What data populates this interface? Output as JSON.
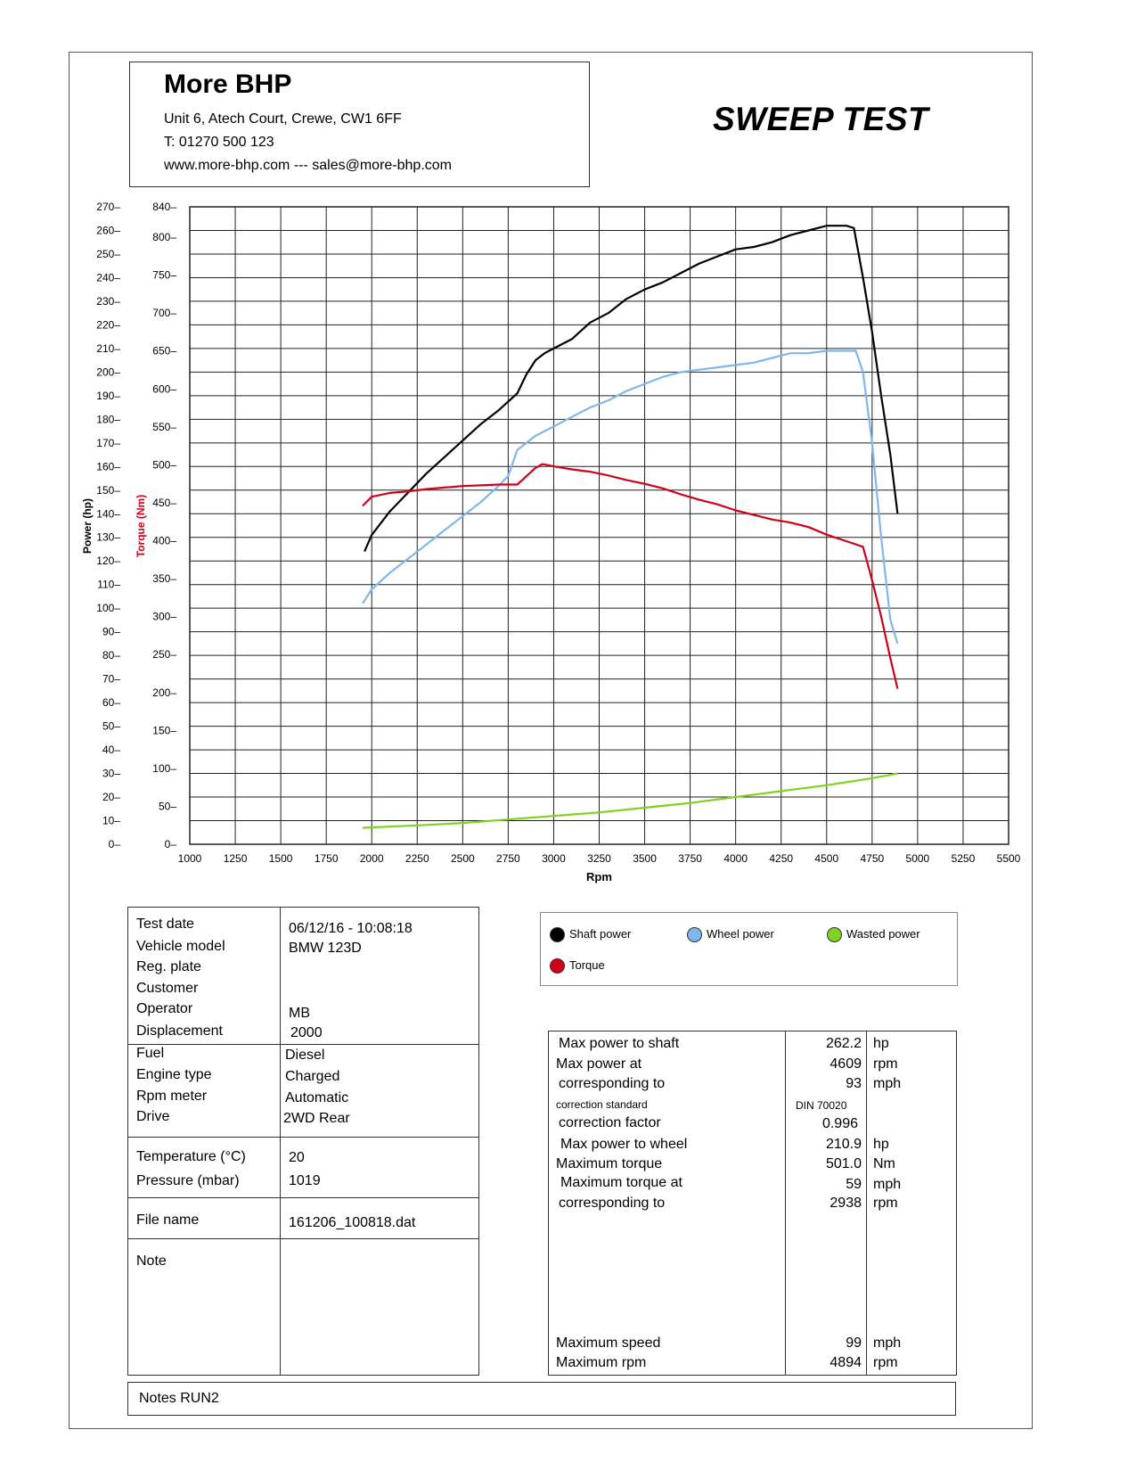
{
  "header": {
    "company": "More BHP",
    "address": "Unit 6, Atech Court, Crewe, CW1 6FF",
    "phone": "T: 01270 500 123",
    "web": "www.more-bhp.com --- sales@more-bhp.com",
    "title": "SWEEP TEST"
  },
  "chart_data": {
    "type": "line",
    "xlabel": "Rpm",
    "ylabel": "Power (hp)",
    "ylabel2": "Torque (Nm)",
    "xlim": [
      1000,
      5500
    ],
    "ylim": [
      0,
      270
    ],
    "ylim2": [
      0,
      840
    ],
    "x_ticks": [
      1000,
      1250,
      1500,
      1750,
      2000,
      2250,
      2500,
      2750,
      3000,
      3250,
      3500,
      3750,
      4000,
      4250,
      4500,
      4750,
      5000,
      5250,
      5500
    ],
    "y_ticks": [
      0,
      10,
      20,
      30,
      40,
      50,
      60,
      70,
      80,
      90,
      100,
      110,
      120,
      130,
      140,
      150,
      160,
      170,
      180,
      190,
      200,
      210,
      220,
      230,
      240,
      250,
      260,
      270
    ],
    "y2_ticks": [
      0,
      50,
      100,
      150,
      200,
      250,
      300,
      350,
      400,
      450,
      500,
      550,
      600,
      650,
      700,
      750,
      800,
      840
    ],
    "grid": true,
    "colors": {
      "shaft": "#000000",
      "wheel": "#7fb7ec",
      "wasted": "#7ed321",
      "torque": "#d0021b"
    },
    "series": [
      {
        "name": "Shaft power",
        "axis": "power",
        "color": "#000000",
        "x": [
          1960,
          2000,
          2100,
          2200,
          2300,
          2400,
          2500,
          2600,
          2700,
          2800,
          2850,
          2900,
          2950,
          3000,
          3100,
          3200,
          3300,
          3400,
          3500,
          3600,
          3700,
          3800,
          3900,
          4000,
          4100,
          4200,
          4300,
          4400,
          4500,
          4609,
          4650,
          4700,
          4750,
          4800,
          4850,
          4890
        ],
        "y": [
          124,
          131,
          141,
          149,
          157,
          164,
          171,
          178,
          184,
          191,
          199,
          205,
          208,
          210,
          214,
          221,
          225,
          231,
          235,
          238,
          242,
          246,
          249,
          252,
          253,
          255,
          258,
          260,
          262,
          262,
          261,
          240,
          217,
          190,
          165,
          140
        ]
      },
      {
        "name": "Wheel power",
        "axis": "power",
        "color": "#7fb7ec",
        "x": [
          1950,
          2000,
          2100,
          2200,
          2300,
          2400,
          2500,
          2600,
          2700,
          2750,
          2800,
          2900,
          3000,
          3100,
          3200,
          3300,
          3400,
          3500,
          3600,
          3700,
          3800,
          3900,
          4000,
          4100,
          4200,
          4300,
          4400,
          4500,
          4600,
          4660,
          4700,
          4750,
          4800,
          4850,
          4890
        ],
        "y": [
          102,
          108,
          115,
          121,
          127,
          133,
          139,
          145,
          152,
          156,
          167,
          173,
          177,
          181,
          185,
          188,
          192,
          195,
          198,
          200,
          201,
          202,
          203,
          204,
          206,
          208,
          208,
          209,
          209,
          209,
          200,
          170,
          130,
          95,
          85
        ]
      },
      {
        "name": "Wasted power",
        "axis": "power",
        "color": "#7ed321",
        "x": [
          1950,
          2250,
          2500,
          2750,
          3000,
          3250,
          3500,
          3750,
          4000,
          4250,
          4500,
          4750,
          4890
        ],
        "y": [
          7,
          8,
          9,
          10.5,
          12,
          13.5,
          15.5,
          17.5,
          20,
          22.5,
          25,
          28,
          30
        ]
      },
      {
        "name": "Torque",
        "axis": "torque",
        "color": "#d0021b",
        "x": [
          1950,
          2000,
          2100,
          2200,
          2300,
          2400,
          2500,
          2600,
          2700,
          2800,
          2850,
          2900,
          2938,
          3000,
          3100,
          3200,
          3300,
          3400,
          3500,
          3600,
          3700,
          3800,
          3900,
          4000,
          4100,
          4200,
          4300,
          4400,
          4500,
          4600,
          4700,
          4750,
          4800,
          4850,
          4890
        ],
        "y": [
          446,
          458,
          463,
          465,
          468,
          470,
          472,
          473,
          474,
          474,
          485,
          496,
          501,
          498,
          494,
          491,
          486,
          480,
          475,
          469,
          461,
          454,
          448,
          440,
          434,
          428,
          424,
          418,
          408,
          400,
          392,
          348,
          300,
          245,
          205
        ]
      }
    ]
  },
  "info": {
    "rows_a": [
      {
        "label": "Test date",
        "value": "06/12/16 - 10:08:18"
      },
      {
        "label": "Vehicle model",
        "value": "BMW 123D"
      },
      {
        "label": "Reg. plate",
        "value": ""
      },
      {
        "label": "Customer",
        "value": ""
      },
      {
        "label": "Operator",
        "value": "MB"
      },
      {
        "label": "Displacement",
        "value": "2000"
      }
    ],
    "rows_b": [
      {
        "label": "Fuel",
        "value": "Diesel"
      },
      {
        "label": "Engine type",
        "value": "Charged"
      },
      {
        "label": "Rpm meter",
        "value": "Automatic"
      },
      {
        "label": "Drive",
        "value": "2WD Rear"
      }
    ],
    "rows_c": [
      {
        "label": "Temperature (°C)",
        "value": "20"
      },
      {
        "label": "Pressure (mbar)",
        "value": "1019"
      }
    ],
    "file_label": "File name",
    "file_value": "161206_100818.dat",
    "note_label": "Note",
    "notes": "Notes  RUN2"
  },
  "legend": [
    {
      "name": "Shaft power",
      "color": "#000000"
    },
    {
      "name": "Wheel power",
      "color": "#7fb7ec"
    },
    {
      "name": "Wasted power",
      "color": "#7ed321"
    },
    {
      "name": "Torque",
      "color": "#d0021b"
    }
  ],
  "results": {
    "rows": [
      {
        "label": "Max power to shaft",
        "value": "262.2",
        "unit": "hp"
      },
      {
        "label": "Max power at",
        "value": "4609",
        "unit": "rpm"
      },
      {
        "label": "corresponding to",
        "value": "93",
        "unit": "mph"
      },
      {
        "label": "correction standard",
        "value": "DIN 70020",
        "unit": "",
        "small": true
      },
      {
        "label": "correction factor",
        "value": "0.996",
        "unit": ""
      },
      {
        "label": "Max power to wheel",
        "value": "210.9",
        "unit": "hp"
      },
      {
        "label": "Maximum torque",
        "value": "501.0",
        "unit": "Nm"
      },
      {
        "label": "Maximum torque at",
        "value": "59",
        "unit": "mph"
      },
      {
        "label": "corresponding to",
        "value": "2938",
        "unit": "rpm"
      }
    ],
    "bottom_rows": [
      {
        "label": "Maximum speed",
        "value": "99",
        "unit": "mph"
      },
      {
        "label": "Maximum rpm",
        "value": "4894",
        "unit": "rpm"
      }
    ]
  }
}
